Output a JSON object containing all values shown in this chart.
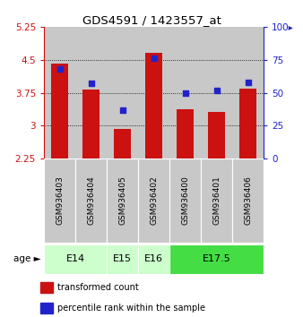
{
  "title": "GDS4591 / 1423557_at",
  "samples": [
    "GSM936403",
    "GSM936404",
    "GSM936405",
    "GSM936402",
    "GSM936400",
    "GSM936401",
    "GSM936406"
  ],
  "transformed_counts": [
    4.42,
    3.83,
    2.92,
    4.65,
    3.38,
    3.32,
    3.85
  ],
  "percentile_ranks": [
    68,
    57,
    37,
    76,
    50,
    52,
    58
  ],
  "bar_color": "#cc1111",
  "dot_color": "#2222cc",
  "ylim_left": [
    2.25,
    5.25
  ],
  "ylim_right": [
    0,
    100
  ],
  "yticks_left": [
    2.25,
    3.0,
    3.75,
    4.5,
    5.25
  ],
  "ytick_labels_left": [
    "2.25",
    "3",
    "3.75",
    "4.5",
    "5.25"
  ],
  "yticks_right": [
    0,
    25,
    50,
    75,
    100
  ],
  "ytick_labels_right": [
    "0",
    "25",
    "50",
    "75",
    "100▸"
  ],
  "left_axis_color": "#cc1111",
  "right_axis_color": "#2222cc",
  "gridlines_at": [
    3.0,
    3.75,
    4.5
  ],
  "age_groups": [
    {
      "label": "E14",
      "indices": [
        0,
        1
      ],
      "color": "#ccffcc"
    },
    {
      "label": "E15",
      "indices": [
        2
      ],
      "color": "#ccffcc"
    },
    {
      "label": "E16",
      "indices": [
        3
      ],
      "color": "#ccffcc"
    },
    {
      "label": "E17.5",
      "indices": [
        4,
        5,
        6
      ],
      "color": "#44dd44"
    }
  ],
  "legend_items": [
    {
      "color": "#cc1111",
      "label": "transformed count"
    },
    {
      "color": "#2222cc",
      "label": "percentile rank within the sample"
    }
  ],
  "bar_width": 0.55,
  "sample_bg_color": "#c8c8c8",
  "plot_bg_color": "#ffffff"
}
